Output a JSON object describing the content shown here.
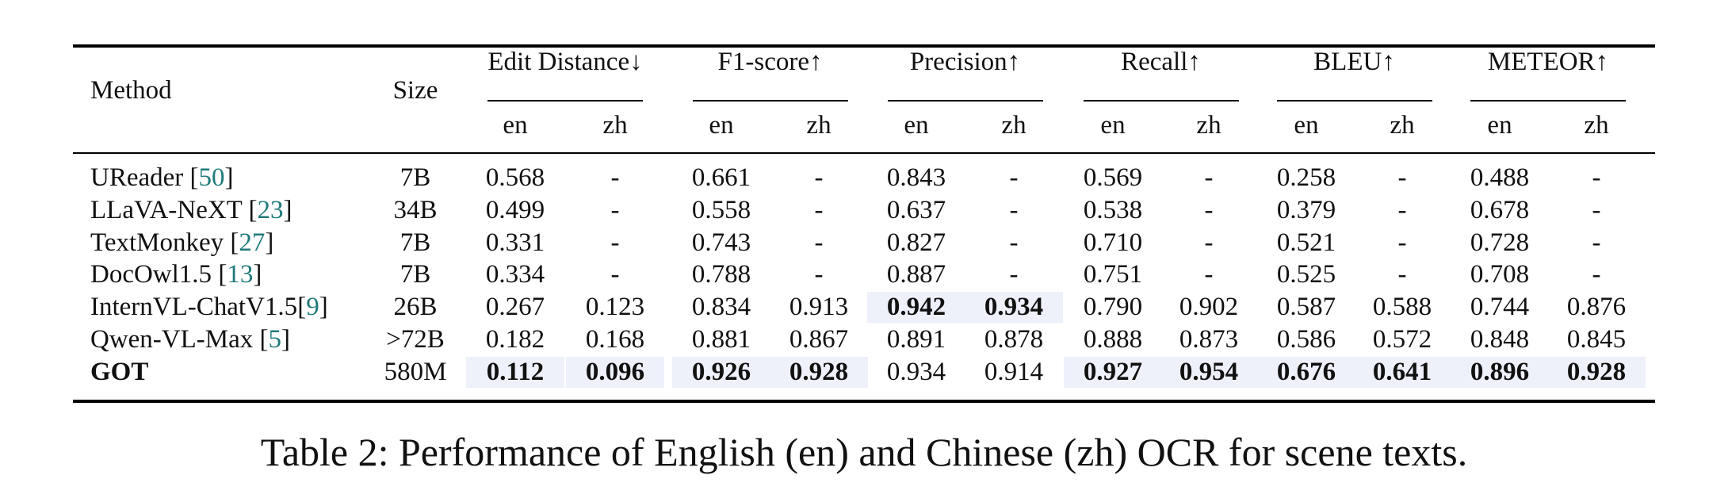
{
  "table": {
    "header": {
      "method": "Method",
      "size": "Size",
      "groups": [
        "Edit Distance↓",
        "F1-score↑",
        "Precision↑",
        "Recall↑",
        "BLEU↑",
        "METEOR↑"
      ],
      "subheaders": [
        "en",
        "zh"
      ]
    },
    "rows": [
      {
        "name": "UReader",
        "cite": "50",
        "size": "7B",
        "values": [
          "0.568",
          "-",
          "0.661",
          "-",
          "0.843",
          "-",
          "0.569",
          "-",
          "0.258",
          "-",
          "0.488",
          "-"
        ]
      },
      {
        "name": "LLaVA-NeXT",
        "cite": "23",
        "size": "34B",
        "values": [
          "0.499",
          "-",
          "0.558",
          "-",
          "0.637",
          "-",
          "0.538",
          "-",
          "0.379",
          "-",
          "0.678",
          "-"
        ]
      },
      {
        "name": "TextMonkey",
        "cite": "27",
        "size": "7B",
        "values": [
          "0.331",
          "-",
          "0.743",
          "-",
          "0.827",
          "-",
          "0.710",
          "-",
          "0.521",
          "-",
          "0.728",
          "-"
        ]
      },
      {
        "name": "DocOwl1.5",
        "cite": "13",
        "size": "7B",
        "values": [
          "0.334",
          "-",
          "0.788",
          "-",
          "0.887",
          "-",
          "0.751",
          "-",
          "0.525",
          "-",
          "0.708",
          "-"
        ]
      },
      {
        "name": "InternVL-ChatV1.5",
        "cite": "9",
        "size": "26B",
        "values": [
          "0.267",
          "0.123",
          "0.834",
          "0.913",
          "0.942",
          "0.934",
          "0.790",
          "0.902",
          "0.587",
          "0.588",
          "0.744",
          "0.876"
        ],
        "bold": [
          4,
          5
        ]
      },
      {
        "name": "Qwen-VL-Max",
        "cite": "5",
        "size": ">72B",
        "values": [
          "0.182",
          "0.168",
          "0.881",
          "0.867",
          "0.891",
          "0.878",
          "0.888",
          "0.873",
          "0.586",
          "0.572",
          "0.848",
          "0.845"
        ]
      },
      {
        "name": "GOT",
        "cite": "",
        "size": "580M",
        "name_bold": true,
        "values": [
          "0.112",
          "0.096",
          "0.926",
          "0.928",
          "0.934",
          "0.914",
          "0.927",
          "0.954",
          "0.676",
          "0.641",
          "0.896",
          "0.928"
        ],
        "bold": [
          0,
          1,
          2,
          3,
          6,
          7,
          8,
          9,
          10,
          11
        ]
      }
    ]
  },
  "caption": "Table 2: Performance of English (en) and Chinese (zh) OCR for scene texts.",
  "colors": {
    "highlight": "#eef0fa",
    "citation": "#1f7a7a"
  }
}
